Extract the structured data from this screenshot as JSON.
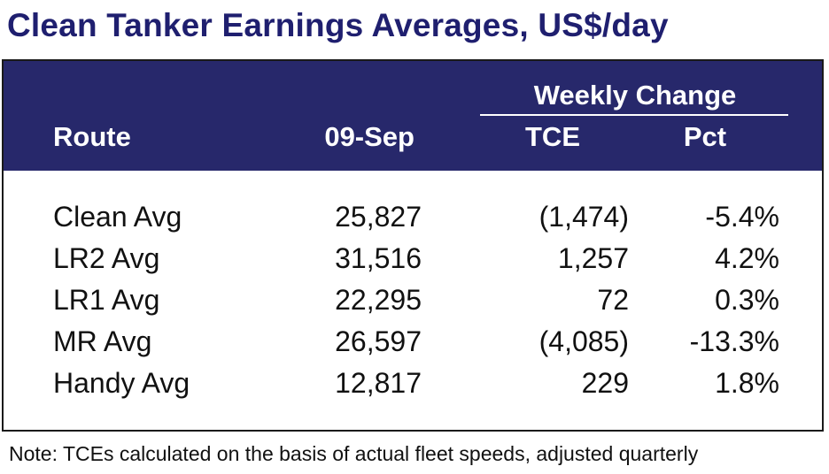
{
  "title": "Clean Tanker Earnings Averages, US$/day",
  "header": {
    "group_label": "Weekly Change",
    "route": "Route",
    "date": "09-Sep",
    "tce": "TCE",
    "pct": "Pct"
  },
  "rows": [
    {
      "route": "Clean Avg",
      "value": "25,827",
      "tce": "(1,474)",
      "pct": "-5.4%"
    },
    {
      "route": "LR2 Avg",
      "value": "31,516",
      "tce": "1,257",
      "pct": "4.2%"
    },
    {
      "route": "LR1 Avg",
      "value": "22,295",
      "tce": "72",
      "pct": "0.3%"
    },
    {
      "route": "MR Avg",
      "value": "26,597",
      "tce": "(4,085)",
      "pct": "-13.3%"
    },
    {
      "route": "Handy Avg",
      "value": "12,817",
      "tce": "229",
      "pct": "1.8%"
    }
  ],
  "note": "Note: TCEs calculated on the basis of actual fleet speeds, adjusted quarterly",
  "colors": {
    "header_bg": "#27286b",
    "title": "#1f1f6f"
  }
}
